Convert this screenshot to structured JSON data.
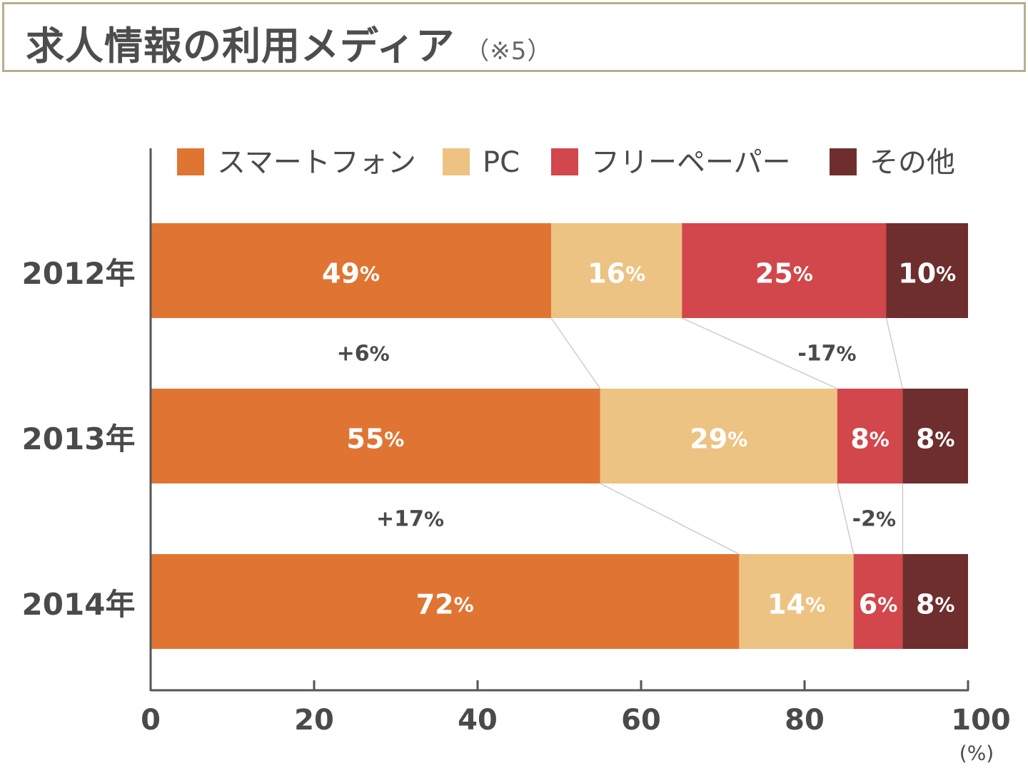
{
  "title": {
    "text": "求人情報の利用メディア",
    "note": "（※5）"
  },
  "colors": {
    "smartphone": "#e07533",
    "pc": "#ecc382",
    "freepaper": "#d1474b",
    "other": "#6e2e2e",
    "axis": "#555555",
    "connector": "#cccccc",
    "title_border": "#b7ae8e"
  },
  "chart_data": {
    "type": "bar",
    "orientation": "horizontal",
    "stacked": true,
    "categories": [
      "2012年",
      "2013年",
      "2014年"
    ],
    "series": [
      {
        "name": "スマートフォン",
        "values": [
          49,
          55,
          72
        ],
        "labels": [
          "49%",
          "55%",
          "72%"
        ]
      },
      {
        "name": "PC",
        "values": [
          16,
          29,
          14
        ],
        "labels": [
          "16%",
          "29%",
          "14%"
        ]
      },
      {
        "name": "フリーペーパー",
        "values": [
          25,
          8,
          6
        ],
        "labels": [
          "25%",
          "8%",
          "6%"
        ]
      },
      {
        "name": "その他",
        "values": [
          10,
          8,
          8
        ],
        "labels": [
          "10%",
          "8%",
          "8%"
        ]
      }
    ],
    "xlim": [
      0,
      100
    ],
    "xticks": [
      "0",
      "20",
      "40",
      "60",
      "80",
      "100"
    ],
    "xunit": "(%)",
    "legend_position": "top",
    "changes": [
      {
        "from": "2012年",
        "to": "2013年",
        "series": "スマートフォン",
        "text": "+6%"
      },
      {
        "from": "2012年",
        "to": "2013年",
        "series": "フリーペーパー",
        "text": "-17%"
      },
      {
        "from": "2013年",
        "to": "2014年",
        "series": "スマートフォン",
        "text": "+17%"
      },
      {
        "from": "2013年",
        "to": "2014年",
        "series": "フリーペーパー",
        "text": "-2%"
      }
    ]
  }
}
